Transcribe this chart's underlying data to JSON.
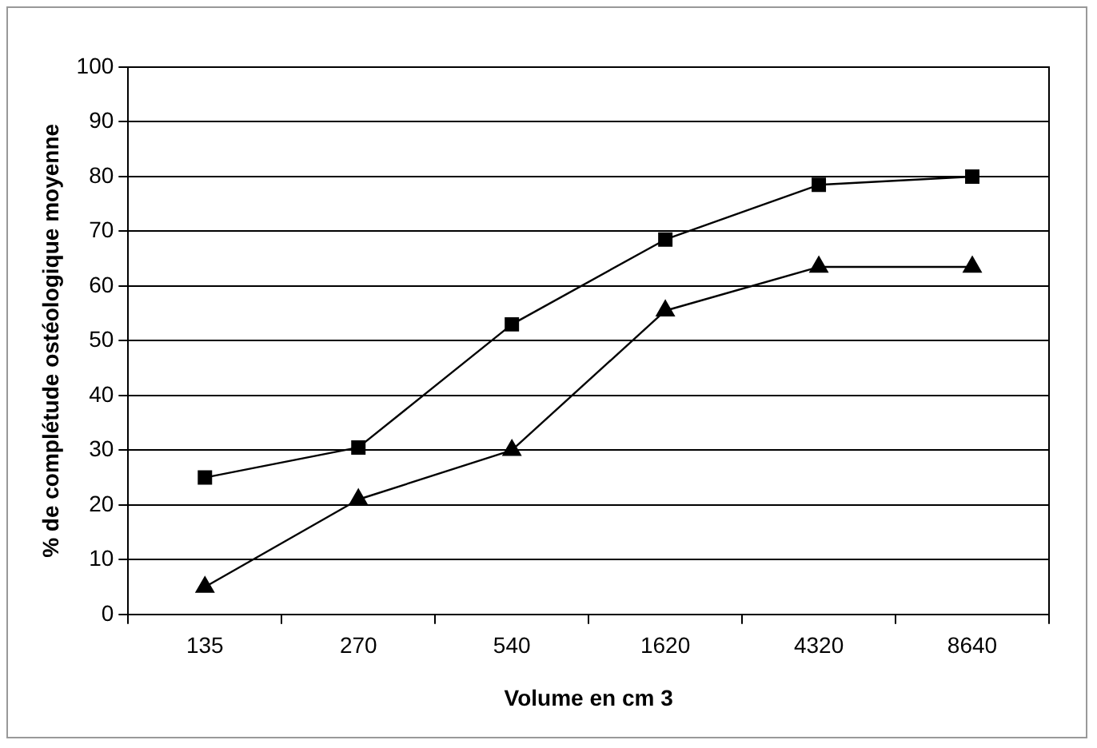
{
  "chart_data": {
    "type": "line",
    "xlabel": "Volume en cm 3",
    "ylabel": "% de complétude ostéologique moyenne",
    "categories": [
      "135",
      "270",
      "540",
      "1620",
      "4320",
      "8640"
    ],
    "series": [
      {
        "color": "#000000",
        "marker": "square",
        "values": [
          25,
          30.5,
          53,
          68.5,
          78.5,
          80
        ]
      },
      {
        "color": "#000000",
        "marker": "triangle",
        "values": [
          5,
          21,
          30,
          55.5,
          63.5,
          63.5
        ]
      }
    ],
    "ylim": [
      0,
      100
    ],
    "yticks": [
      0,
      10,
      20,
      30,
      40,
      50,
      60,
      70,
      80,
      90,
      100
    ],
    "grid": "y",
    "legend": false
  }
}
